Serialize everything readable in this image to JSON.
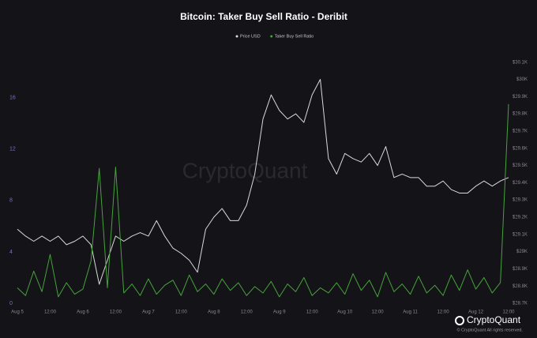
{
  "chart_data": {
    "type": "line",
    "title": "Bitcoin: Taker Buy Sell Ratio - Deribit",
    "watermark": "CryptoQuant",
    "footer_logo": "CryptoQuant",
    "footer_note": "© CryptoQuant All rights reserved.",
    "x": [
      "Aug 5 00:00",
      "Aug 5 03:00",
      "Aug 5 06:00",
      "Aug 5 09:00",
      "Aug 5 12:00",
      "Aug 5 15:00",
      "Aug 5 18:00",
      "Aug 5 21:00",
      "Aug 6 00:00",
      "Aug 6 03:00",
      "Aug 6 06:00",
      "Aug 6 09:00",
      "Aug 6 12:00",
      "Aug 6 15:00",
      "Aug 6 18:00",
      "Aug 6 21:00",
      "Aug 7 00:00",
      "Aug 7 03:00",
      "Aug 7 06:00",
      "Aug 7 09:00",
      "Aug 7 12:00",
      "Aug 7 15:00",
      "Aug 7 18:00",
      "Aug 7 21:00",
      "Aug 8 00:00",
      "Aug 8 03:00",
      "Aug 8 06:00",
      "Aug 8 09:00",
      "Aug 8 12:00",
      "Aug 8 15:00",
      "Aug 8 18:00",
      "Aug 8 21:00",
      "Aug 9 00:00",
      "Aug 9 03:00",
      "Aug 9 06:00",
      "Aug 9 09:00",
      "Aug 9 12:00",
      "Aug 9 15:00",
      "Aug 9 18:00",
      "Aug 9 21:00",
      "Aug 10 00:00",
      "Aug 10 03:00",
      "Aug 10 06:00",
      "Aug 10 09:00",
      "Aug 10 12:00",
      "Aug 10 15:00",
      "Aug 10 18:00",
      "Aug 10 21:00",
      "Aug 11 00:00",
      "Aug 11 03:00",
      "Aug 11 06:00",
      "Aug 11 09:00",
      "Aug 11 12:00",
      "Aug 11 15:00",
      "Aug 11 18:00",
      "Aug 11 21:00",
      "Aug 12 00:00",
      "Aug 12 03:00",
      "Aug 12 06:00",
      "Aug 12 09:00",
      "Aug 12 12:00"
    ],
    "xlim": [
      "Aug 5 00:00",
      "Aug 12 12:00"
    ],
    "xticks": [
      {
        "value": "Aug 5 00:00",
        "label": "Aug 5"
      },
      {
        "value": "Aug 5 12:00",
        "label": "12:00"
      },
      {
        "value": "Aug 6 00:00",
        "label": "Aug 6"
      },
      {
        "value": "Aug 6 12:00",
        "label": "12:00"
      },
      {
        "value": "Aug 7 00:00",
        "label": "Aug 7"
      },
      {
        "value": "Aug 7 12:00",
        "label": "12:00"
      },
      {
        "value": "Aug 8 00:00",
        "label": "Aug 8"
      },
      {
        "value": "Aug 8 12:00",
        "label": "12:00"
      },
      {
        "value": "Aug 9 00:00",
        "label": "Aug 9"
      },
      {
        "value": "Aug 9 12:00",
        "label": "12:00"
      },
      {
        "value": "Aug 10 00:00",
        "label": "Aug 10"
      },
      {
        "value": "Aug 10 12:00",
        "label": "12:00"
      },
      {
        "value": "Aug 11 00:00",
        "label": "Aug 11"
      },
      {
        "value": "Aug 11 12:00",
        "label": "12:00"
      },
      {
        "value": "Aug 12 00:00",
        "label": "Aug 12"
      },
      {
        "value": "Aug 12 12:00",
        "label": "12:00"
      }
    ],
    "ylim": [
      0,
      19.3
    ],
    "yticks": [
      0,
      4,
      8,
      12,
      16
    ],
    "y2lim": [
      28700,
      30140
    ],
    "y2ticks": [
      {
        "value": 28700,
        "label": "$28.7K"
      },
      {
        "value": 28800,
        "label": "$28.8K"
      },
      {
        "value": 28900,
        "label": "$28.9K"
      },
      {
        "value": 29000,
        "label": "$29K"
      },
      {
        "value": 29100,
        "label": "$29.1K"
      },
      {
        "value": 29200,
        "label": "$29.2K"
      },
      {
        "value": 29300,
        "label": "$29.3K"
      },
      {
        "value": 29400,
        "label": "$29.4K"
      },
      {
        "value": 29500,
        "label": "$29.5K"
      },
      {
        "value": 29600,
        "label": "$29.6K"
      },
      {
        "value": 29700,
        "label": "$29.7K"
      },
      {
        "value": 29800,
        "label": "$29.8K"
      },
      {
        "value": 29900,
        "label": "$29.9K"
      },
      {
        "value": 30000,
        "label": "$30K"
      },
      {
        "value": 30100,
        "label": "$30.1K"
      }
    ],
    "grid": false,
    "legend": "top",
    "series": [
      {
        "name": "Price USD",
        "color": "#d9d9dc",
        "axis": "y2",
        "values": [
          29130,
          29090,
          29060,
          29090,
          29060,
          29090,
          29040,
          29060,
          29090,
          29040,
          28810,
          28950,
          29090,
          29060,
          29090,
          29110,
          29090,
          29180,
          29090,
          29020,
          28990,
          28950,
          28880,
          29130,
          29200,
          29250,
          29180,
          29180,
          29270,
          29450,
          29770,
          29910,
          29820,
          29770,
          29800,
          29750,
          29910,
          30000,
          29540,
          29450,
          29570,
          29540,
          29520,
          29570,
          29500,
          29610,
          29430,
          29450,
          29430,
          29430,
          29380,
          29380,
          29410,
          29360,
          29340,
          29340,
          29380,
          29410,
          29380,
          29410,
          29430
        ]
      },
      {
        "name": "Taker Buy Sell Ratio",
        "color": "#46a33c",
        "axis": "y",
        "values": [
          1.2,
          0.6,
          2.5,
          0.9,
          3.8,
          0.5,
          1.6,
          0.7,
          1.1,
          3.3,
          10.5,
          1.2,
          10.6,
          0.8,
          1.5,
          0.6,
          1.9,
          0.7,
          1.4,
          1.8,
          0.6,
          2.2,
          0.9,
          1.5,
          0.7,
          1.9,
          1.0,
          1.6,
          0.6,
          1.3,
          0.8,
          1.7,
          0.5,
          1.5,
          0.9,
          2.0,
          0.6,
          1.2,
          0.8,
          1.6,
          0.7,
          2.3,
          1.0,
          1.8,
          0.5,
          2.4,
          0.9,
          1.5,
          0.7,
          2.1,
          0.8,
          1.4,
          0.6,
          2.2,
          1.0,
          2.6,
          1.1,
          2.0,
          0.8,
          1.6,
          15.5
        ]
      }
    ]
  }
}
